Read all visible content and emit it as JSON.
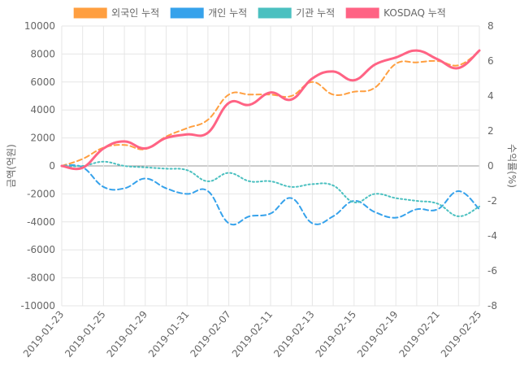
{
  "chart_data": {
    "type": "line",
    "categories": [
      "2019-01-23",
      "2019-01-24",
      "2019-01-25",
      "2019-01-28",
      "2019-01-29",
      "2019-01-30",
      "2019-01-31",
      "2019-02-01",
      "2019-02-07",
      "2019-02-08",
      "2019-02-11",
      "2019-02-12",
      "2019-02-13",
      "2019-02-14",
      "2019-02-15",
      "2019-02-18",
      "2019-02-19",
      "2019-02-20",
      "2019-02-21",
      "2019-02-22",
      "2019-02-25"
    ],
    "x_tick_labels": [
      "2019-01-23",
      "2019-01-25",
      "2019-01-29",
      "2019-01-31",
      "2019-02-07",
      "2019-02-11",
      "2019-02-13",
      "2019-02-15",
      "2019-02-19",
      "2019-02-21",
      "2019-02-25"
    ],
    "y_left": {
      "label": "금액(억원)",
      "range": [
        -10000,
        10000
      ],
      "ticks": [
        10000,
        8000,
        6000,
        4000,
        2000,
        0,
        -2000,
        -4000,
        -6000,
        -8000,
        -10000
      ]
    },
    "y_right": {
      "label": "수익률(%)",
      "range": [
        -8,
        8
      ],
      "ticks": [
        8,
        6,
        4,
        2,
        0,
        -2,
        -4,
        -6,
        -8
      ]
    },
    "grid": true,
    "legend_position": "top",
    "series": [
      {
        "name": "외국인 누적",
        "axis": "left",
        "color": "#ff9f40",
        "style": "dashed",
        "values": [
          0,
          500,
          1300,
          1500,
          1200,
          2100,
          2700,
          3300,
          5100,
          5100,
          5100,
          5000,
          6000,
          5100,
          5300,
          5600,
          7300,
          7400,
          7500,
          7200,
          8200
        ]
      },
      {
        "name": "개인 누적",
        "axis": "left",
        "color": "#36a2eb",
        "style": "dashed",
        "values": [
          0,
          -100,
          -1500,
          -1600,
          -900,
          -1600,
          -2000,
          -1800,
          -4100,
          -3600,
          -3400,
          -2300,
          -4100,
          -3600,
          -2500,
          -3300,
          -3700,
          -3100,
          -3100,
          -1800,
          -3100
        ]
      },
      {
        "name": "기관 누적",
        "axis": "left",
        "color": "#4bc0c0",
        "style": "dotted",
        "values": [
          0,
          0,
          300,
          0,
          -100,
          -200,
          -300,
          -1100,
          -500,
          -1100,
          -1100,
          -1500,
          -1300,
          -1400,
          -2600,
          -2000,
          -2300,
          -2500,
          -2700,
          -3600,
          -2900
        ]
      },
      {
        "name": "KOSDAQ 누적",
        "axis": "right",
        "color": "#ff6384",
        "style": "solid",
        "values": [
          0,
          -0.1,
          1.0,
          1.4,
          1.0,
          1.6,
          1.8,
          1.9,
          3.6,
          3.5,
          4.2,
          3.8,
          5.0,
          5.4,
          4.9,
          5.8,
          6.2,
          6.6,
          6.1,
          5.6,
          6.6
        ]
      }
    ]
  }
}
